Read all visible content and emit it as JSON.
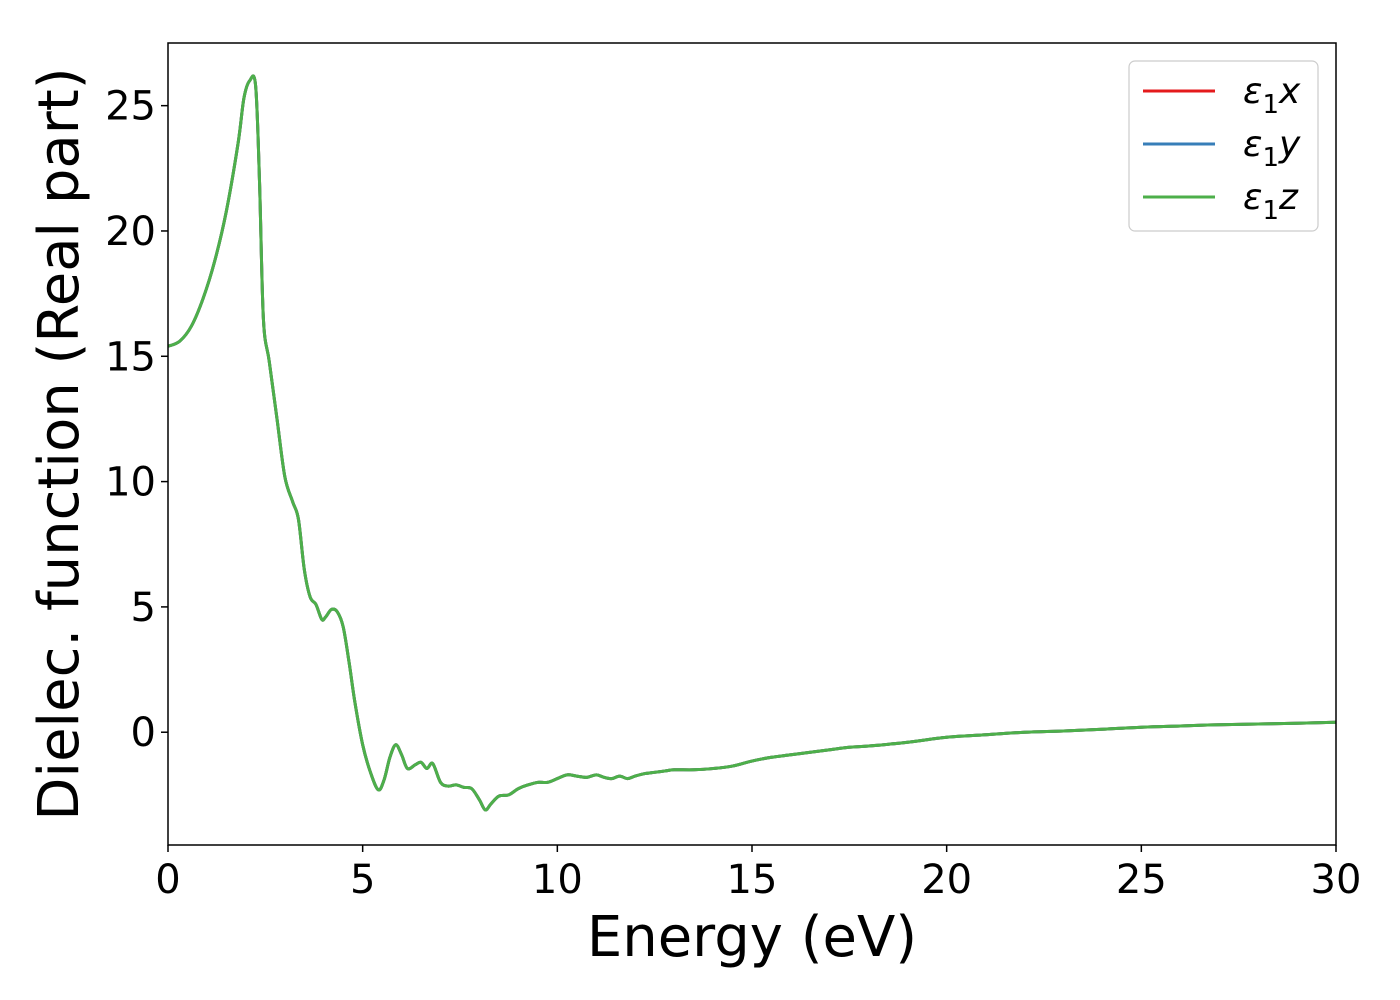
{
  "chart_data": {
    "type": "line",
    "title": "",
    "xlabel": "Energy (eV)",
    "ylabel": "Dielec. function (Real part)",
    "xlim": [
      0,
      30
    ],
    "ylim": [
      -4.5,
      27.5
    ],
    "xticks": [
      0,
      5,
      10,
      15,
      20,
      25,
      30
    ],
    "yticks": [
      0,
      5,
      10,
      15,
      20,
      25
    ],
    "grid": false,
    "legend_position": "top-right",
    "series": [
      {
        "name": "ε1x",
        "base": "ε",
        "sub": "1",
        "axis": "x",
        "color": "#e41a1c",
        "x": [
          0,
          0.3,
          0.6,
          0.9,
          1.2,
          1.5,
          1.8,
          1.95,
          2.1,
          2.25,
          2.35,
          2.45,
          2.6,
          2.8,
          3.0,
          3.2,
          3.35,
          3.5,
          3.65,
          3.8,
          3.95,
          4.05,
          4.2,
          4.35,
          4.5,
          4.65,
          4.8,
          5.0,
          5.2,
          5.4,
          5.55,
          5.7,
          5.85,
          6.0,
          6.15,
          6.35,
          6.5,
          6.65,
          6.8,
          7.0,
          7.2,
          7.4,
          7.6,
          7.8,
          8.0,
          8.15,
          8.3,
          8.5,
          8.75,
          9.0,
          9.25,
          9.5,
          9.75,
          10.0,
          10.25,
          10.5,
          10.75,
          11.0,
          11.2,
          11.4,
          11.6,
          11.8,
          12.0,
          12.25,
          12.5,
          12.75,
          13.0,
          13.5,
          14.0,
          14.5,
          15.0,
          15.5,
          16.0,
          16.5,
          17.0,
          17.5,
          18.0,
          19.0,
          20.0,
          21.0,
          22.0,
          23.0,
          24.0,
          25.0,
          26.0,
          27.0,
          28.0,
          29.0,
          30.0
        ],
        "y": [
          15.4,
          15.6,
          16.2,
          17.3,
          18.8,
          20.8,
          23.5,
          25.3,
          26.0,
          25.8,
          22.0,
          16.5,
          14.8,
          12.5,
          10.2,
          9.2,
          8.5,
          6.5,
          5.4,
          5.1,
          4.5,
          4.6,
          4.9,
          4.8,
          4.2,
          2.8,
          1.2,
          -0.5,
          -1.6,
          -2.3,
          -1.9,
          -1.0,
          -0.5,
          -0.9,
          -1.45,
          -1.3,
          -1.2,
          -1.45,
          -1.25,
          -2.0,
          -2.15,
          -2.1,
          -2.2,
          -2.25,
          -2.7,
          -3.1,
          -2.85,
          -2.55,
          -2.5,
          -2.25,
          -2.1,
          -2.0,
          -2.0,
          -1.85,
          -1.7,
          -1.75,
          -1.8,
          -1.7,
          -1.8,
          -1.85,
          -1.75,
          -1.85,
          -1.75,
          -1.65,
          -1.6,
          -1.55,
          -1.5,
          -1.5,
          -1.45,
          -1.35,
          -1.15,
          -1.0,
          -0.9,
          -0.8,
          -0.7,
          -0.6,
          -0.55,
          -0.4,
          -0.2,
          -0.1,
          0.0,
          0.05,
          0.12,
          0.2,
          0.25,
          0.3,
          0.33,
          0.36,
          0.4
        ]
      },
      {
        "name": "ε1y",
        "base": "ε",
        "sub": "1",
        "axis": "y",
        "color": "#377eb8",
        "x": [
          0,
          0.3,
          0.6,
          0.9,
          1.2,
          1.5,
          1.8,
          1.95,
          2.1,
          2.25,
          2.35,
          2.45,
          2.6,
          2.8,
          3.0,
          3.2,
          3.35,
          3.5,
          3.65,
          3.8,
          3.95,
          4.05,
          4.2,
          4.35,
          4.5,
          4.65,
          4.8,
          5.0,
          5.2,
          5.4,
          5.55,
          5.7,
          5.85,
          6.0,
          6.15,
          6.35,
          6.5,
          6.65,
          6.8,
          7.0,
          7.2,
          7.4,
          7.6,
          7.8,
          8.0,
          8.15,
          8.3,
          8.5,
          8.75,
          9.0,
          9.25,
          9.5,
          9.75,
          10.0,
          10.25,
          10.5,
          10.75,
          11.0,
          11.2,
          11.4,
          11.6,
          11.8,
          12.0,
          12.25,
          12.5,
          12.75,
          13.0,
          13.5,
          14.0,
          14.5,
          15.0,
          15.5,
          16.0,
          16.5,
          17.0,
          17.5,
          18.0,
          19.0,
          20.0,
          21.0,
          22.0,
          23.0,
          24.0,
          25.0,
          26.0,
          27.0,
          28.0,
          29.0,
          30.0
        ],
        "y": [
          15.4,
          15.6,
          16.2,
          17.3,
          18.8,
          20.8,
          23.5,
          25.3,
          26.0,
          25.8,
          22.0,
          16.5,
          14.8,
          12.5,
          10.2,
          9.2,
          8.5,
          6.5,
          5.4,
          5.1,
          4.5,
          4.6,
          4.9,
          4.8,
          4.2,
          2.8,
          1.2,
          -0.5,
          -1.6,
          -2.3,
          -1.9,
          -1.0,
          -0.5,
          -0.9,
          -1.45,
          -1.3,
          -1.2,
          -1.45,
          -1.25,
          -2.0,
          -2.15,
          -2.1,
          -2.2,
          -2.25,
          -2.7,
          -3.1,
          -2.85,
          -2.55,
          -2.5,
          -2.25,
          -2.1,
          -2.0,
          -2.0,
          -1.85,
          -1.7,
          -1.75,
          -1.8,
          -1.7,
          -1.8,
          -1.85,
          -1.75,
          -1.85,
          -1.75,
          -1.65,
          -1.6,
          -1.55,
          -1.5,
          -1.5,
          -1.45,
          -1.35,
          -1.15,
          -1.0,
          -0.9,
          -0.8,
          -0.7,
          -0.6,
          -0.55,
          -0.4,
          -0.2,
          -0.1,
          0.0,
          0.05,
          0.12,
          0.2,
          0.25,
          0.3,
          0.33,
          0.36,
          0.4
        ]
      },
      {
        "name": "ε1z",
        "base": "ε",
        "sub": "1",
        "axis": "z",
        "color": "#4daf4a",
        "x": [
          0,
          0.3,
          0.6,
          0.9,
          1.2,
          1.5,
          1.8,
          1.95,
          2.1,
          2.25,
          2.35,
          2.45,
          2.6,
          2.8,
          3.0,
          3.2,
          3.35,
          3.5,
          3.65,
          3.8,
          3.95,
          4.05,
          4.2,
          4.35,
          4.5,
          4.65,
          4.8,
          5.0,
          5.2,
          5.4,
          5.55,
          5.7,
          5.85,
          6.0,
          6.15,
          6.35,
          6.5,
          6.65,
          6.8,
          7.0,
          7.2,
          7.4,
          7.6,
          7.8,
          8.0,
          8.15,
          8.3,
          8.5,
          8.75,
          9.0,
          9.25,
          9.5,
          9.75,
          10.0,
          10.25,
          10.5,
          10.75,
          11.0,
          11.2,
          11.4,
          11.6,
          11.8,
          12.0,
          12.25,
          12.5,
          12.75,
          13.0,
          13.5,
          14.0,
          14.5,
          15.0,
          15.5,
          16.0,
          16.5,
          17.0,
          17.5,
          18.0,
          19.0,
          20.0,
          21.0,
          22.0,
          23.0,
          24.0,
          25.0,
          26.0,
          27.0,
          28.0,
          29.0,
          30.0
        ],
        "y": [
          15.4,
          15.6,
          16.2,
          17.3,
          18.8,
          20.8,
          23.5,
          25.3,
          26.0,
          25.8,
          22.0,
          16.5,
          14.8,
          12.5,
          10.2,
          9.2,
          8.5,
          6.5,
          5.4,
          5.1,
          4.5,
          4.6,
          4.9,
          4.8,
          4.2,
          2.8,
          1.2,
          -0.5,
          -1.6,
          -2.3,
          -1.9,
          -1.0,
          -0.5,
          -0.9,
          -1.45,
          -1.3,
          -1.2,
          -1.45,
          -1.25,
          -2.0,
          -2.15,
          -2.1,
          -2.2,
          -2.25,
          -2.7,
          -3.1,
          -2.85,
          -2.55,
          -2.5,
          -2.25,
          -2.1,
          -2.0,
          -2.0,
          -1.85,
          -1.7,
          -1.75,
          -1.8,
          -1.7,
          -1.8,
          -1.85,
          -1.75,
          -1.85,
          -1.75,
          -1.65,
          -1.6,
          -1.55,
          -1.5,
          -1.5,
          -1.45,
          -1.35,
          -1.15,
          -1.0,
          -0.9,
          -0.8,
          -0.7,
          -0.6,
          -0.55,
          -0.4,
          -0.2,
          -0.1,
          0.0,
          0.05,
          0.12,
          0.2,
          0.25,
          0.3,
          0.33,
          0.36,
          0.4
        ]
      }
    ]
  }
}
